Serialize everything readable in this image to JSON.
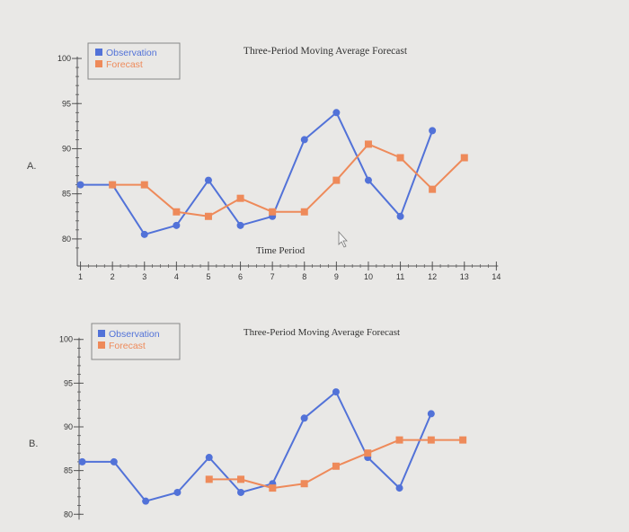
{
  "colors": {
    "observation": "#5272d8",
    "forecast": "#ee8a5a",
    "axis": "#555555",
    "legend_border": "#888888",
    "background": "#e9e8e6"
  },
  "chart_data": [
    {
      "type": "line",
      "option_label": "A.",
      "title": "Three-Period Moving Average Forecast",
      "xlabel": "Time Period",
      "ylabel": "",
      "legend": [
        "Observation",
        "Forecast"
      ],
      "legend_position": "top-left",
      "y_ticks": [
        80,
        85,
        90,
        95,
        100
      ],
      "ylim": [
        77,
        101
      ],
      "x_ticks": [
        1,
        2,
        3,
        4,
        5,
        6,
        7,
        8,
        9,
        10,
        11,
        12,
        13,
        14
      ],
      "xlim": [
        0.9,
        14
      ],
      "series": [
        {
          "name": "Observation",
          "x": [
            1,
            2,
            3,
            4,
            5,
            6,
            7,
            8,
            9,
            10,
            11,
            12
          ],
          "values": [
            86,
            86,
            80.5,
            81.5,
            86.5,
            81.5,
            82.5,
            91,
            94,
            86.5,
            82.5,
            92
          ]
        },
        {
          "name": "Forecast",
          "x": [
            2,
            3,
            4,
            5,
            6,
            7,
            8,
            9,
            10,
            11,
            12,
            13
          ],
          "values": [
            86,
            86,
            83,
            82.5,
            84.5,
            83,
            83,
            86.5,
            90.5,
            89,
            85.5,
            89
          ]
        }
      ]
    },
    {
      "type": "line",
      "option_label": "B.",
      "title": "Three-Period Moving Average Forecast",
      "xlabel": "",
      "ylabel": "",
      "legend": [
        "Observation",
        "Forecast"
      ],
      "legend_position": "top-left",
      "y_ticks": [
        80,
        85,
        90,
        95,
        100
      ],
      "ylim": [
        79,
        101
      ],
      "x_ticks": [],
      "xlim": [
        0.9,
        14
      ],
      "series": [
        {
          "name": "Observation",
          "x": [
            1,
            2,
            3,
            4,
            5,
            6,
            7,
            8,
            9,
            10,
            11,
            12
          ],
          "values": [
            86,
            86,
            81.5,
            82.5,
            86.5,
            82.5,
            83.5,
            91,
            94,
            86.5,
            83,
            91.5
          ]
        },
        {
          "name": "Forecast",
          "x": [
            5,
            6,
            7,
            8,
            9,
            10,
            11,
            12,
            13
          ],
          "values": [
            84,
            84,
            83,
            83.5,
            85.5,
            87,
            88.5,
            88.5,
            88.5
          ]
        }
      ]
    }
  ]
}
